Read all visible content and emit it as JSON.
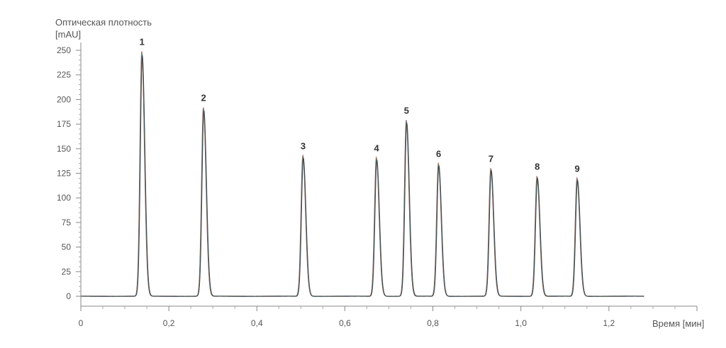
{
  "chart_data": {
    "type": "line",
    "ylabel_line1": "Оптическая плотность",
    "ylabel_line2": "[mAU]",
    "xlabel": "Время [мин]",
    "xlim": [
      0,
      1.4
    ],
    "ylim": [
      -15,
      260
    ],
    "x_ticks": [
      {
        "value": 0,
        "label": "0"
      },
      {
        "value": 0.2,
        "label": "0,2"
      },
      {
        "value": 0.4,
        "label": "0,4"
      },
      {
        "value": 0.6,
        "label": "0,6"
      },
      {
        "value": 0.8,
        "label": "0,8"
      },
      {
        "value": 1.0,
        "label": "1,0"
      },
      {
        "value": 1.2,
        "label": "1,2"
      }
    ],
    "y_ticks": [
      0,
      25,
      50,
      75,
      100,
      125,
      150,
      175,
      200,
      225,
      250
    ],
    "peaks": [
      {
        "label": "1",
        "time": 0.139,
        "height": 249
      },
      {
        "label": "2",
        "time": 0.279,
        "height": 192
      },
      {
        "label": "3",
        "time": 0.505,
        "height": 143
      },
      {
        "label": "4",
        "time": 0.672,
        "height": 141
      },
      {
        "label": "5",
        "time": 0.74,
        "height": 179
      },
      {
        "label": "6",
        "time": 0.813,
        "height": 135
      },
      {
        "label": "7",
        "time": 0.932,
        "height": 130
      },
      {
        "label": "8",
        "time": 1.037,
        "height": 122
      },
      {
        "label": "9",
        "time": 1.128,
        "height": 120
      }
    ],
    "trace_end_time": 1.28,
    "overlay_colors": [
      "#7a2f6e",
      "#c8a020",
      "#2f7fb0",
      "#3a3a3a"
    ]
  }
}
